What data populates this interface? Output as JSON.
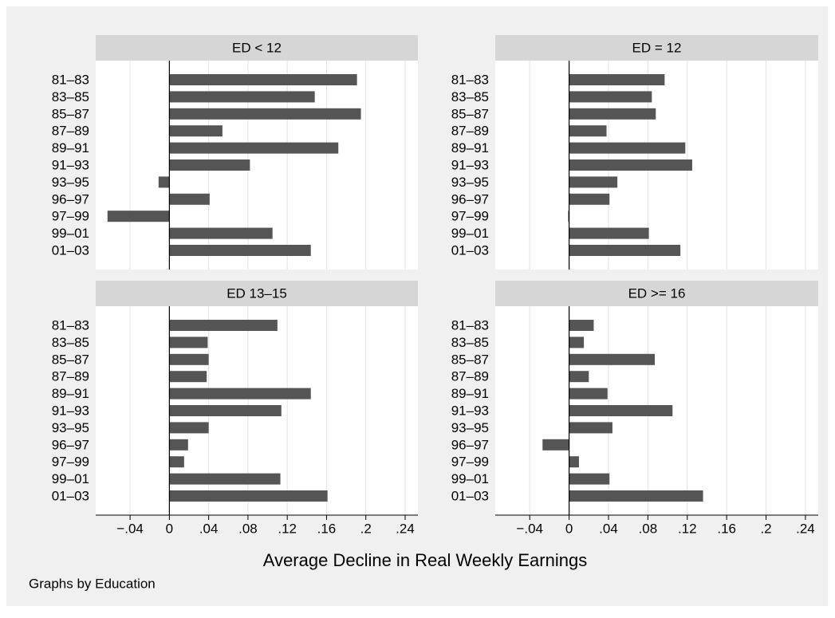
{
  "chart_data": [
    {
      "type": "bar",
      "orientation": "horizontal",
      "title": "ED < 12",
      "categories": [
        "81–83",
        "83–85",
        "85–87",
        "87–89",
        "89–91",
        "91–93",
        "93–95",
        "96–97",
        "97–99",
        "99–01",
        "01–03"
      ],
      "values": [
        0.191,
        0.148,
        0.195,
        0.054,
        0.172,
        0.082,
        -0.011,
        0.041,
        -0.063,
        0.105,
        0.144
      ],
      "color": "#555555",
      "xlim": [
        -0.075,
        0.253
      ],
      "grid": true,
      "xticks": [
        {
          "value": -0.04,
          "label": "−.04"
        },
        0,
        {
          "value": 0.04,
          "label": ".04"
        },
        {
          "value": 0.08,
          "label": ".08"
        },
        {
          "value": 0.12,
          "label": ".12"
        },
        {
          "value": 0.16,
          "label": ".16"
        },
        {
          "value": 0.2,
          "label": ".2"
        },
        {
          "value": 0.24,
          "label": ".24"
        }
      ]
    },
    {
      "type": "bar",
      "orientation": "horizontal",
      "title": "ED = 12",
      "categories": [
        "81–83",
        "83–85",
        "85–87",
        "87–89",
        "89–91",
        "91–93",
        "93–95",
        "96–97",
        "97–99",
        "99–01",
        "01–03"
      ],
      "values": [
        0.097,
        0.084,
        0.088,
        0.038,
        0.118,
        0.125,
        0.049,
        0.041,
        -0.001,
        0.081,
        0.113
      ],
      "color": "#555555",
      "xlim": [
        -0.075,
        0.253
      ],
      "grid": true,
      "xticks": [
        {
          "value": -0.04,
          "label": "−.04"
        },
        0,
        {
          "value": 0.04,
          "label": ".04"
        },
        {
          "value": 0.08,
          "label": ".08"
        },
        {
          "value": 0.12,
          "label": ".12"
        },
        {
          "value": 0.16,
          "label": ".16"
        },
        {
          "value": 0.2,
          "label": ".2"
        },
        {
          "value": 0.24,
          "label": ".24"
        }
      ]
    },
    {
      "type": "bar",
      "orientation": "horizontal",
      "title": "ED 13–15",
      "categories": [
        "81–83",
        "83–85",
        "85–87",
        "87–89",
        "89–91",
        "91–93",
        "93–95",
        "96–97",
        "97–99",
        "99–01",
        "01–03"
      ],
      "values": [
        0.11,
        0.039,
        0.04,
        0.038,
        0.144,
        0.114,
        0.04,
        0.019,
        0.015,
        0.113,
        0.161
      ],
      "color": "#555555",
      "xlim": [
        -0.075,
        0.253
      ],
      "grid": true,
      "xticks": [
        {
          "value": -0.04,
          "label": "−.04"
        },
        0,
        {
          "value": 0.04,
          "label": ".04"
        },
        {
          "value": 0.08,
          "label": ".08"
        },
        {
          "value": 0.12,
          "label": ".12"
        },
        {
          "value": 0.16,
          "label": ".16"
        },
        {
          "value": 0.2,
          "label": ".2"
        },
        {
          "value": 0.24,
          "label": ".24"
        }
      ]
    },
    {
      "type": "bar",
      "orientation": "horizontal",
      "title": "ED >= 16",
      "categories": [
        "81–83",
        "83–85",
        "85–87",
        "87–89",
        "89–91",
        "91–93",
        "93–95",
        "96–97",
        "97–99",
        "99–01",
        "01–03"
      ],
      "values": [
        0.025,
        0.015,
        0.087,
        0.02,
        0.039,
        0.105,
        0.044,
        -0.027,
        0.01,
        0.041,
        0.136
      ],
      "color": "#555555",
      "xlim": [
        -0.075,
        0.253
      ],
      "grid": true,
      "xticks": [
        {
          "value": -0.04,
          "label": "−.04"
        },
        0,
        {
          "value": 0.04,
          "label": ".04"
        },
        {
          "value": 0.08,
          "label": ".08"
        },
        {
          "value": 0.12,
          "label": ".12"
        },
        {
          "value": 0.16,
          "label": ".16"
        },
        {
          "value": 0.2,
          "label": ".2"
        },
        {
          "value": 0.24,
          "label": ".24"
        }
      ]
    }
  ],
  "x_label": "Average Decline in Real Weekly Earnings",
  "note": "Graphs by Education"
}
